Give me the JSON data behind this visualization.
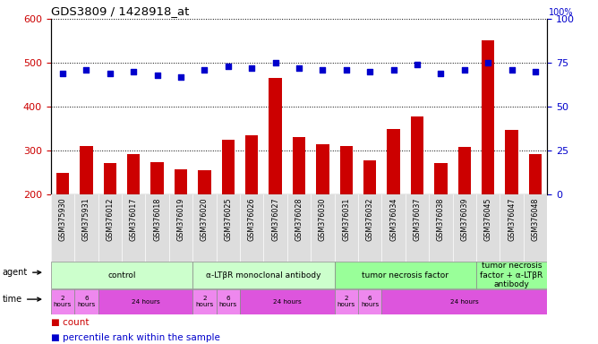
{
  "title": "GDS3809 / 1428918_at",
  "samples": [
    "GSM375930",
    "GSM375931",
    "GSM376012",
    "GSM376017",
    "GSM376018",
    "GSM376019",
    "GSM376020",
    "GSM376025",
    "GSM376026",
    "GSM376027",
    "GSM376028",
    "GSM376030",
    "GSM376031",
    "GSM376032",
    "GSM376034",
    "GSM376037",
    "GSM376038",
    "GSM376039",
    "GSM376045",
    "GSM376047",
    "GSM376048"
  ],
  "counts": [
    248,
    310,
    271,
    292,
    274,
    257,
    256,
    325,
    335,
    465,
    330,
    315,
    310,
    277,
    350,
    378,
    272,
    308,
    551,
    347,
    291
  ],
  "percentiles": [
    69,
    71,
    69,
    70,
    68,
    67,
    71,
    73,
    72,
    75,
    72,
    71,
    71,
    70,
    71,
    74,
    69,
    71,
    75,
    71,
    70
  ],
  "bar_color": "#cc0000",
  "dot_color": "#0000cc",
  "ylim_left": [
    200,
    600
  ],
  "ylim_right": [
    0,
    100
  ],
  "yticks_left": [
    200,
    300,
    400,
    500,
    600
  ],
  "yticks_right": [
    0,
    25,
    50,
    75,
    100
  ],
  "agent_groups": [
    {
      "label": "control",
      "start": 0,
      "end": 6,
      "color": "#ccffcc"
    },
    {
      "label": "α-LTβR monoclonal antibody",
      "start": 6,
      "end": 12,
      "color": "#ccffcc"
    },
    {
      "label": "tumor necrosis factor",
      "start": 12,
      "end": 18,
      "color": "#99ff99"
    },
    {
      "label": "tumor necrosis\nfactor + α-LTβR\nantibody",
      "start": 18,
      "end": 21,
      "color": "#99ff99"
    }
  ],
  "time_groups": [
    {
      "label": "2\nhours",
      "start": 0,
      "end": 1,
      "color": "#ee88ee"
    },
    {
      "label": "6\nhours",
      "start": 1,
      "end": 2,
      "color": "#ee88ee"
    },
    {
      "label": "24 hours",
      "start": 2,
      "end": 6,
      "color": "#dd55dd"
    },
    {
      "label": "2\nhours",
      "start": 6,
      "end": 7,
      "color": "#ee88ee"
    },
    {
      "label": "6\nhours",
      "start": 7,
      "end": 8,
      "color": "#ee88ee"
    },
    {
      "label": "24 hours",
      "start": 8,
      "end": 12,
      "color": "#dd55dd"
    },
    {
      "label": "2\nhours",
      "start": 12,
      "end": 13,
      "color": "#ee88ee"
    },
    {
      "label": "6\nhours",
      "start": 13,
      "end": 14,
      "color": "#ee88ee"
    },
    {
      "label": "24 hours",
      "start": 14,
      "end": 21,
      "color": "#dd55dd"
    }
  ],
  "bg_color": "#ffffff",
  "tick_label_color_left": "#cc0000",
  "tick_label_color_right": "#0000cc",
  "sample_bg_color": "#dddddd",
  "label_row_border": "#888888"
}
